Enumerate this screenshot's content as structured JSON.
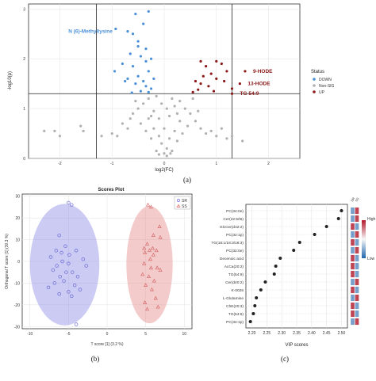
{
  "captions": {
    "a": "(a)",
    "b": "(b)",
    "c": "(c)"
  },
  "colors": {
    "down": "#4a90d9",
    "nonsig": "#b0b0b0",
    "up": "#8b1a1a",
    "sr": "#8c8ce6",
    "ss": "#e68c8c"
  },
  "chart_data": [
    {
      "type": "scatter",
      "title": "",
      "xlabel": "log2(FC)",
      "ylabel": "-log10(p)",
      "xlim": [
        -2.6,
        2.6
      ],
      "ylim": [
        0,
        3.1
      ],
      "xticks": [
        "-2",
        "-1",
        "0",
        "1",
        "2"
      ],
      "yticks": [
        "0",
        "1",
        "2",
        "3"
      ],
      "thresholds": {
        "x": [
          -1.3,
          1.3
        ],
        "y": 1.3
      },
      "legend": {
        "title": "Status",
        "entries": [
          "DOWN",
          "Non-SIG",
          "UP"
        ],
        "placement": "right"
      },
      "annotations": [
        {
          "text": "N (6)-Methyllysine",
          "x": -0.93,
          "y": 2.55,
          "series": "DOWN"
        },
        {
          "text": "9-HODE",
          "x": 1.55,
          "y": 1.75,
          "series": "UP"
        },
        {
          "text": "13-HODE",
          "x": 1.45,
          "y": 1.5,
          "series": "UP"
        },
        {
          "text": "TG 54:9",
          "x": 1.3,
          "y": 1.3,
          "series": "UP"
        }
      ],
      "series": [
        {
          "name": "DOWN",
          "points": [
            [
              -0.93,
              2.6
            ],
            [
              -0.7,
              2.55
            ],
            [
              -0.6,
              2.5
            ],
            [
              -0.55,
              2.9
            ],
            [
              -0.3,
              2.95
            ],
            [
              -0.4,
              2.7
            ],
            [
              -0.5,
              2.35
            ],
            [
              -0.65,
              2.1
            ],
            [
              -0.45,
              2.05
            ],
            [
              -0.35,
              1.95
            ],
            [
              -0.25,
              2.0
            ],
            [
              -0.6,
              1.85
            ],
            [
              -0.8,
              1.9
            ],
            [
              -0.3,
              1.75
            ],
            [
              -0.5,
              1.65
            ],
            [
              -0.7,
              1.6
            ],
            [
              -0.4,
              1.55
            ],
            [
              -0.55,
              1.5
            ],
            [
              -0.35,
              1.45
            ],
            [
              -0.25,
              1.4
            ],
            [
              -0.45,
              1.35
            ],
            [
              -0.62,
              1.32
            ],
            [
              -0.3,
              1.33
            ],
            [
              -0.95,
              1.75
            ],
            [
              -0.2,
              1.6
            ],
            [
              -0.5,
              2.25
            ],
            [
              -0.35,
              2.2
            ],
            [
              -0.75,
              1.55
            ]
          ]
        },
        {
          "name": "UP",
          "points": [
            [
              0.7,
              1.95
            ],
            [
              0.8,
              1.85
            ],
            [
              0.9,
              1.7
            ],
            [
              1.0,
              1.95
            ],
            [
              1.1,
              1.9
            ],
            [
              0.6,
              1.55
            ],
            [
              0.7,
              1.5
            ],
            [
              0.85,
              1.45
            ],
            [
              0.95,
              1.35
            ],
            [
              0.55,
              1.33
            ],
            [
              0.65,
              1.38
            ],
            [
              1.0,
              1.6
            ],
            [
              1.15,
              1.55
            ],
            [
              1.3,
              1.4
            ],
            [
              1.45,
              1.5
            ],
            [
              1.55,
              1.75
            ],
            [
              1.3,
              1.3
            ],
            [
              0.75,
              1.65
            ],
            [
              1.2,
              1.75
            ]
          ]
        },
        {
          "name": "Non-SIG",
          "points": [
            [
              -2.3,
              0.55
            ],
            [
              -2.1,
              0.55
            ],
            [
              -1.55,
              0.55
            ],
            [
              -1.6,
              0.65
            ],
            [
              -2.0,
              0.45
            ],
            [
              -1.2,
              0.45
            ],
            [
              -1.0,
              0.5
            ],
            [
              -0.9,
              0.45
            ],
            [
              -0.8,
              0.7
            ],
            [
              -0.7,
              0.6
            ],
            [
              -0.6,
              0.9
            ],
            [
              -0.5,
              1.0
            ],
            [
              -0.4,
              1.1
            ],
            [
              -0.3,
              1.2
            ],
            [
              -0.2,
              0.95
            ],
            [
              -0.1,
              0.8
            ],
            [
              0.0,
              0.6
            ],
            [
              0.1,
              0.85
            ],
            [
              0.2,
              1.05
            ],
            [
              0.3,
              1.15
            ],
            [
              0.4,
              1.0
            ],
            [
              0.5,
              0.9
            ],
            [
              0.6,
              0.75
            ],
            [
              0.7,
              0.6
            ],
            [
              0.8,
              0.5
            ],
            [
              0.9,
              0.55
            ],
            [
              1.0,
              0.45
            ],
            [
              1.1,
              0.6
            ],
            [
              1.2,
              0.4
            ],
            [
              1.3,
              0.45
            ],
            [
              1.5,
              0.35
            ],
            [
              -0.05,
              0.3
            ],
            [
              0.05,
              0.2
            ],
            [
              0.0,
              0.1
            ],
            [
              -0.15,
              0.15
            ],
            [
              0.15,
              0.15
            ],
            [
              -0.25,
              0.4
            ],
            [
              0.25,
              0.35
            ],
            [
              -0.35,
              0.55
            ],
            [
              0.35,
              0.5
            ],
            [
              -0.45,
              0.7
            ],
            [
              0.45,
              0.65
            ],
            [
              -0.3,
              0.8
            ],
            [
              0.3,
              0.75
            ],
            [
              -0.2,
              0.6
            ],
            [
              0.2,
              0.55
            ],
            [
              -0.1,
              0.45
            ],
            [
              0.1,
              0.4
            ],
            [
              0.05,
              1.0
            ],
            [
              -0.05,
              1.1
            ],
            [
              0.15,
              1.2
            ],
            [
              -0.15,
              1.25
            ],
            [
              0.25,
              0.9
            ],
            [
              -0.25,
              0.85
            ],
            [
              0.55,
              1.2
            ],
            [
              -0.55,
              1.15
            ],
            [
              0.65,
              0.95
            ],
            [
              -0.65,
              0.8
            ],
            [
              0.05,
              0.05
            ],
            [
              -0.1,
              0.08
            ],
            [
              0.12,
              0.1
            ]
          ]
        }
      ]
    },
    {
      "type": "scatter",
      "title": "Scores Plot",
      "xlabel": "T score [1] (3.2 %)",
      "ylabel": "Orthogonal T score [1] (30.3 %)",
      "xlim": [
        -11,
        11
      ],
      "ylim": [
        -31,
        31
      ],
      "xticks": [
        "-10",
        "-5",
        "0",
        "5",
        "10"
      ],
      "yticks": [
        "-30",
        "-20",
        "-10",
        "0",
        "10",
        "20",
        "30"
      ],
      "legend": {
        "entries": [
          "SR",
          "SS"
        ],
        "placement": "top-right"
      },
      "ellipses": [
        {
          "name": "SR",
          "cx": -5.5,
          "cy": -1.5,
          "rx": 4.5,
          "ry": 28
        },
        {
          "name": "SS",
          "cx": 5.5,
          "cy": -1.5,
          "rx": 3.0,
          "ry": 27
        }
      ],
      "series": [
        {
          "name": "SR",
          "marker": "circle",
          "points": [
            [
              -5.0,
              27
            ],
            [
              -4.6,
              26
            ],
            [
              -6.2,
              12
            ],
            [
              -7.3,
              2
            ],
            [
              -4.0,
              5
            ],
            [
              -3.1,
              1
            ],
            [
              -5.8,
              0
            ],
            [
              -5.0,
              -1
            ],
            [
              -6.5,
              -2
            ],
            [
              -7.0,
              -4
            ],
            [
              -5.3,
              -5
            ],
            [
              -4.5,
              -5
            ],
            [
              -6.1,
              -7
            ],
            [
              -3.8,
              -7
            ],
            [
              -5.6,
              -9
            ],
            [
              -6.8,
              -10
            ],
            [
              -4.2,
              -11
            ],
            [
              -5.0,
              -14
            ],
            [
              -6.2,
              -15
            ],
            [
              -4.6,
              -16
            ],
            [
              -2.7,
              -2
            ],
            [
              -5.9,
              4
            ],
            [
              -6.6,
              5
            ],
            [
              -4.9,
              3
            ],
            [
              -5.4,
              7
            ],
            [
              -7.6,
              -12
            ],
            [
              -3.5,
              -13
            ],
            [
              -4.0,
              -29
            ]
          ]
        },
        {
          "name": "SS",
          "marker": "triangle",
          "points": [
            [
              5.3,
              26
            ],
            [
              5.7,
              25
            ],
            [
              6.8,
              16
            ],
            [
              6.0,
              12
            ],
            [
              6.9,
              11
            ],
            [
              5.2,
              8
            ],
            [
              4.8,
              6
            ],
            [
              5.9,
              6
            ],
            [
              6.4,
              5
            ],
            [
              5.5,
              5
            ],
            [
              4.9,
              4
            ],
            [
              6.0,
              3
            ],
            [
              5.6,
              1
            ],
            [
              4.8,
              -1
            ],
            [
              5.7,
              -3
            ],
            [
              6.9,
              -4
            ],
            [
              4.6,
              -6
            ],
            [
              5.4,
              -7
            ],
            [
              6.1,
              -9
            ],
            [
              5.0,
              -11
            ],
            [
              5.8,
              -13
            ],
            [
              6.3,
              -17
            ],
            [
              4.9,
              -19
            ],
            [
              6.6,
              -21
            ],
            [
              5.2,
              -22
            ],
            [
              6.5,
              -3
            ]
          ]
        }
      ]
    },
    {
      "type": "dot",
      "title": "",
      "xlabel": "VIP scores",
      "xlim": [
        2.18,
        2.52
      ],
      "xticks": [
        "2.20",
        "2.25",
        "2.30",
        "2.35",
        "2.40",
        "2.45",
        "2.50"
      ],
      "categories": [
        "PC(34:0e)",
        "Cer(22:5/t6)",
        "GlcCer(d42:2)",
        "PC(32:1p)",
        "TG(18:1/18:3/18:3)",
        "PC(32:0e)",
        "Decenoic acid",
        "AcCa(20:2)",
        "TG(54:9)",
        "Cer(d40:2)",
        "K-0026",
        "L-Glutamine",
        "ChE(20:3)",
        "TG(54:6)",
        "PC(34:1p)"
      ],
      "values": [
        2.5,
        2.49,
        2.45,
        2.41,
        2.36,
        2.34,
        2.295,
        2.28,
        2.275,
        2.245,
        2.23,
        2.215,
        2.21,
        2.205,
        2.195
      ],
      "heat_columns": [
        "SR",
        "SS"
      ],
      "heat_values": [
        [
          0.2,
          0.9
        ],
        [
          0.2,
          0.9
        ],
        [
          0.9,
          0.2
        ],
        [
          0.2,
          0.9
        ],
        [
          0.9,
          0.2
        ],
        [
          0.2,
          0.9
        ],
        [
          0.9,
          0.2
        ],
        [
          0.9,
          0.2
        ],
        [
          0.9,
          0.2
        ],
        [
          0.2,
          0.9
        ],
        [
          0.9,
          0.2
        ],
        [
          0.2,
          0.9
        ],
        [
          0.9,
          0.2
        ],
        [
          0.9,
          0.2
        ],
        [
          0.2,
          0.9
        ]
      ],
      "colorbar": {
        "high_label": "High",
        "low_label": "Low"
      }
    }
  ]
}
